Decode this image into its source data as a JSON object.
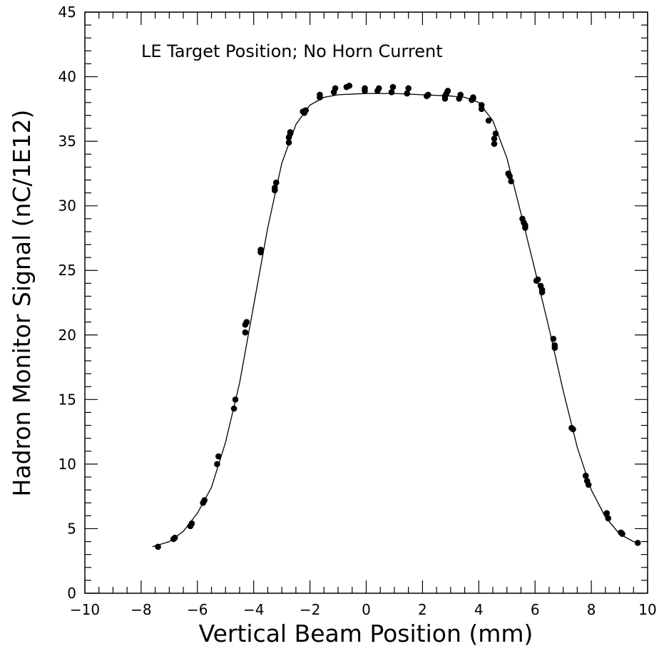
{
  "chart_data": {
    "type": "scatter",
    "annotation": "LE Target Position; No Horn Current",
    "xlabel": "Vertical Beam Position (mm)",
    "ylabel": "Hadron Monitor Signal (nC/1E12)",
    "xlim": [
      -10,
      10
    ],
    "ylim": [
      0,
      45
    ],
    "x_ticks": [
      -10,
      -8,
      -6,
      -4,
      -2,
      0,
      2,
      4,
      6,
      8,
      10
    ],
    "y_ticks": [
      0,
      5,
      10,
      15,
      20,
      25,
      30,
      35,
      40,
      45
    ],
    "grid": false,
    "legend": "none",
    "series": [
      {
        "kind": "points",
        "x": [
          -7.4,
          -6.85,
          -6.8,
          -6.25,
          -6.2,
          -5.8,
          -5.75,
          -5.3,
          -5.25,
          -4.7,
          -4.65,
          -4.3,
          -4.3,
          -4.25,
          -3.75,
          -3.75,
          -3.25,
          -3.25,
          -3.2,
          -2.75,
          -2.75,
          -2.7,
          -2.7,
          -2.25,
          -2.2,
          -2.15,
          -1.65,
          -1.65,
          -1.15,
          -1.1,
          -0.7,
          -0.6,
          -0.05,
          -0.05,
          0.4,
          0.45,
          0.9,
          0.95,
          1.45,
          1.5,
          2.15,
          2.2,
          2.8,
          2.8,
          2.85,
          2.9,
          3.3,
          3.35,
          3.75,
          3.8,
          3.8,
          4.1,
          4.1,
          4.35,
          4.55,
          4.55,
          4.6,
          5.05,
          5.1,
          5.15,
          5.55,
          5.6,
          5.65,
          5.65,
          6.05,
          6.1,
          6.2,
          6.25,
          6.25,
          6.65,
          6.7,
          6.7,
          7.3,
          7.35,
          7.8,
          7.85,
          7.9,
          8.55,
          8.6,
          9.05,
          9.1,
          9.65
        ],
        "y": [
          3.6,
          4.2,
          4.3,
          5.2,
          5.4,
          7.0,
          7.2,
          10.0,
          10.6,
          14.3,
          15.0,
          20.2,
          20.8,
          21.0,
          26.4,
          26.6,
          31.2,
          31.4,
          31.8,
          34.9,
          35.3,
          35.6,
          35.7,
          37.3,
          37.2,
          37.4,
          38.4,
          38.6,
          38.8,
          39.1,
          39.2,
          39.3,
          38.9,
          39.1,
          38.9,
          39.1,
          38.8,
          39.2,
          38.7,
          39.1,
          38.5,
          38.6,
          38.3,
          38.5,
          38.7,
          38.9,
          38.3,
          38.6,
          38.2,
          38.3,
          38.4,
          37.5,
          37.8,
          36.6,
          34.8,
          35.2,
          35.6,
          32.5,
          32.3,
          31.9,
          29.0,
          28.7,
          28.5,
          28.3,
          24.2,
          24.3,
          23.8,
          23.5,
          23.3,
          19.7,
          19.2,
          19.0,
          12.8,
          12.7,
          9.1,
          8.7,
          8.4,
          6.2,
          5.8,
          4.7,
          4.6,
          3.9
        ]
      },
      {
        "kind": "fit-line",
        "x": [
          -7.6,
          -7.0,
          -6.5,
          -6.0,
          -5.5,
          -5.0,
          -4.5,
          -4.0,
          -3.5,
          -3.0,
          -2.5,
          -2.0,
          -1.5,
          -1.0,
          0.0,
          1.0,
          2.0,
          3.0,
          3.5,
          4.0,
          4.5,
          5.0,
          5.5,
          6.0,
          6.5,
          7.0,
          7.5,
          8.0,
          8.5,
          9.0,
          9.5,
          9.7
        ],
        "y": [
          3.6,
          4.0,
          4.8,
          6.2,
          8.2,
          11.7,
          16.3,
          22.3,
          28.3,
          33.3,
          36.3,
          37.8,
          38.4,
          38.6,
          38.7,
          38.7,
          38.6,
          38.5,
          38.4,
          38.0,
          36.6,
          33.7,
          29.4,
          25.0,
          20.5,
          15.7,
          11.3,
          8.0,
          5.9,
          4.6,
          4.0,
          3.9
        ]
      }
    ]
  }
}
